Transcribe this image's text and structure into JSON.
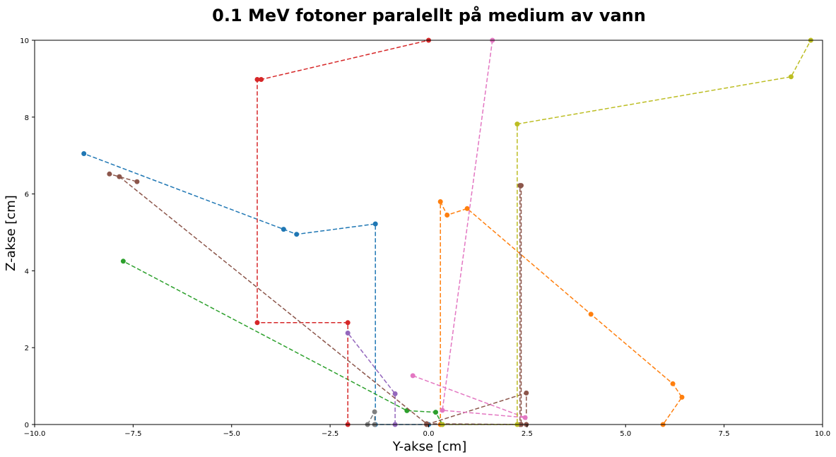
{
  "chart_data": {
    "type": "line",
    "title": "0.1 MeV fotoner paralellt på medium av vann",
    "xlabel": "Y-akse [cm]",
    "ylabel": "Z-akse [cm]",
    "xlim": [
      -10,
      10
    ],
    "ylim": [
      0,
      10
    ],
    "x_ticks": [
      "−10.0",
      "−7.5",
      "−5.0",
      "−2.5",
      "0.0",
      "2.5",
      "5.0",
      "7.5",
      "10.0"
    ],
    "y_ticks": [
      "0",
      "2",
      "4",
      "6",
      "8",
      "10"
    ],
    "grid": false,
    "line_style": "dashed",
    "marker": "circle",
    "series": [
      {
        "color": "#1f77b4",
        "points": [
          [
            0,
            0
          ],
          [
            -1.35,
            0
          ],
          [
            -1.35,
            5.22
          ],
          [
            -3.35,
            4.95
          ],
          [
            -3.68,
            5.08
          ],
          [
            -8.75,
            7.05
          ]
        ]
      },
      {
        "color": "#ff7f0e",
        "points": [
          [
            0.3,
            0
          ],
          [
            0.3,
            5.8
          ],
          [
            0.47,
            5.45
          ],
          [
            0.98,
            5.62
          ],
          [
            4.12,
            2.87
          ],
          [
            6.2,
            1.06
          ],
          [
            6.43,
            0.71
          ],
          [
            5.95,
            0
          ]
        ]
      },
      {
        "color": "#2ca02c",
        "points": [
          [
            0.35,
            0
          ],
          [
            0.18,
            0.32
          ],
          [
            -0.55,
            0.36
          ],
          [
            -7.75,
            4.25
          ]
        ]
      },
      {
        "color": "#d62728",
        "points": [
          [
            -2.05,
            0
          ],
          [
            -2.05,
            2.65
          ],
          [
            -4.35,
            2.65
          ],
          [
            -4.35,
            8.98
          ],
          [
            -4.25,
            8.98
          ],
          [
            0.0,
            10.0
          ]
        ]
      },
      {
        "color": "#9467bd",
        "points": [
          [
            -0.85,
            0
          ],
          [
            -0.85,
            0.8
          ],
          [
            -2.05,
            2.38
          ]
        ]
      },
      {
        "color": "#8c564b",
        "points": [
          [
            -0.05,
            0
          ],
          [
            2.48,
            0.82
          ],
          [
            2.48,
            0
          ],
          [
            2.32,
            0
          ],
          [
            2.32,
            6.22
          ],
          [
            2.35,
            6.22
          ],
          [
            2.35,
            0
          ],
          [
            -0.05,
            0.02
          ],
          [
            -7.85,
            6.45
          ],
          [
            -8.1,
            6.52
          ],
          [
            -7.4,
            6.32
          ]
        ]
      },
      {
        "color": "#e377c2",
        "points": [
          [
            -0.4,
            1.27
          ],
          [
            2.45,
            0.18
          ],
          [
            0.35,
            0.37
          ],
          [
            1.62,
            10.0
          ]
        ]
      },
      {
        "color": "#7f7f7f",
        "points": [
          [
            -1.55,
            0
          ],
          [
            -1.37,
            0.33
          ],
          [
            -1.37,
            0
          ]
        ]
      },
      {
        "color": "#bcbd22",
        "points": [
          [
            0.35,
            0
          ],
          [
            2.25,
            0
          ],
          [
            2.25,
            7.82
          ],
          [
            9.2,
            9.05
          ],
          [
            9.7,
            10.0
          ]
        ]
      }
    ]
  }
}
